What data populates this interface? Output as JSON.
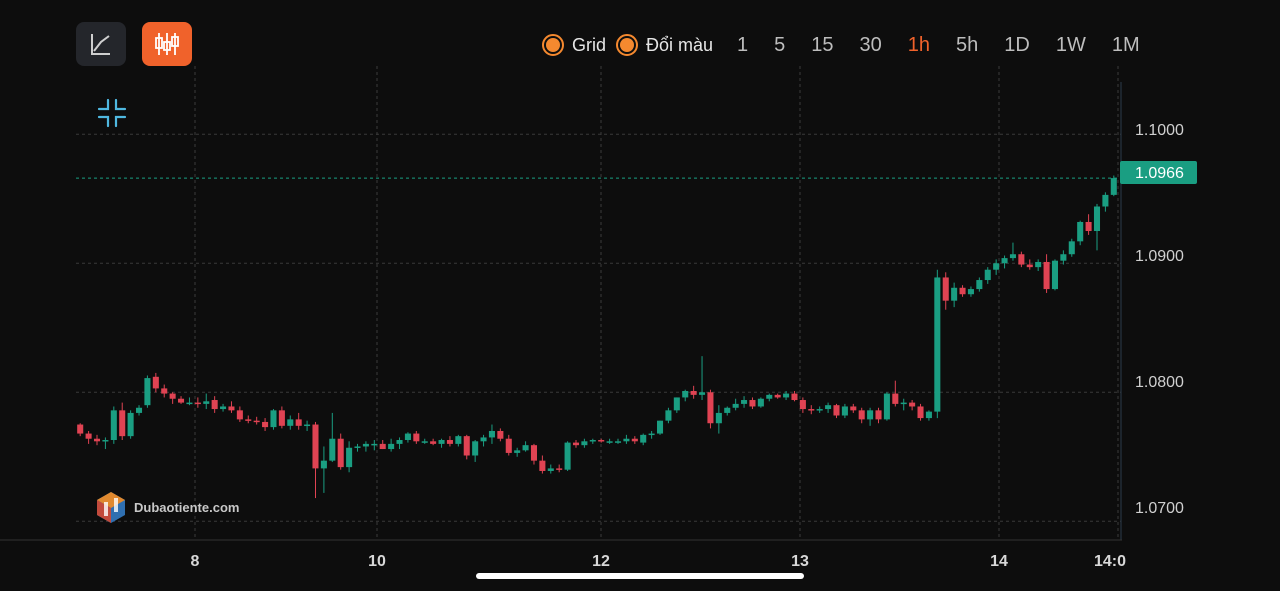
{
  "toolbar": {
    "grid_label": "Grid",
    "color_label": "Đổi màu",
    "timeframes": [
      "1",
      "5",
      "15",
      "30",
      "1h",
      "5h",
      "1D",
      "1W",
      "1M"
    ],
    "active_timeframe": "1h",
    "accent_color": "#f0622b"
  },
  "icons": {
    "line_chart": "line-chart-icon",
    "candlestick": "candlestick-icon",
    "collapse": "collapse-icon"
  },
  "watermark": {
    "text": "Dubaotiente.com"
  },
  "chart_data": {
    "type": "candlestick",
    "y_ticks": [
      "1.1000",
      "1.0900",
      "1.0800",
      "1.0700"
    ],
    "y_tick_values": [
      1.1,
      1.09,
      1.08,
      1.07
    ],
    "ylim": [
      1.06855,
      1.10405
    ],
    "x_ticks": [
      "8",
      "10",
      "12",
      "13",
      "14",
      "14:0"
    ],
    "current_price": "1.0966",
    "current_price_value": 1.0966,
    "grid": true,
    "up_color": "#1a9e82",
    "down_color": "#e04353",
    "candles_ohlc": [
      [
        1.0775,
        1.0776,
        1.0766,
        1.0768
      ],
      [
        1.0768,
        1.077,
        1.076,
        1.0764
      ],
      [
        1.0764,
        1.0767,
        1.0759,
        1.0762
      ],
      [
        1.0762,
        1.0765,
        1.0756,
        1.0763
      ],
      [
        1.0763,
        1.0789,
        1.076,
        1.0786
      ],
      [
        1.0786,
        1.0792,
        1.0763,
        1.0766
      ],
      [
        1.0766,
        1.0786,
        1.0764,
        1.0784
      ],
      [
        1.0784,
        1.079,
        1.0782,
        1.0788
      ],
      [
        1.079,
        1.0813,
        1.0788,
        1.0811
      ],
      [
        1.0812,
        1.0815,
        1.08,
        1.0803
      ],
      [
        1.0803,
        1.0806,
        1.0796,
        1.0799
      ],
      [
        1.0799,
        1.08,
        1.0791,
        1.0795
      ],
      [
        1.0795,
        1.0797,
        1.0791,
        1.0792
      ],
      [
        1.0792,
        1.0796,
        1.079,
        1.0792
      ],
      [
        1.0792,
        1.0796,
        1.0788,
        1.0791
      ],
      [
        1.0791,
        1.0799,
        1.0787,
        1.0793
      ],
      [
        1.0794,
        1.0797,
        1.0784,
        1.0787
      ],
      [
        1.0787,
        1.0791,
        1.0785,
        1.0789
      ],
      [
        1.0789,
        1.0793,
        1.0784,
        1.0786
      ],
      [
        1.0786,
        1.0789,
        1.0777,
        1.0779
      ],
      [
        1.0779,
        1.0782,
        1.0776,
        1.0778
      ],
      [
        1.0778,
        1.0781,
        1.0775,
        1.0777
      ],
      [
        1.0777,
        1.078,
        1.077,
        1.0773
      ],
      [
        1.0773,
        1.0787,
        1.0771,
        1.0786
      ],
      [
        1.0786,
        1.0789,
        1.0772,
        1.0774
      ],
      [
        1.0774,
        1.0782,
        1.0771,
        1.0779
      ],
      [
        1.0779,
        1.0784,
        1.0771,
        1.0774
      ],
      [
        1.0774,
        1.0778,
        1.077,
        1.0775
      ],
      [
        1.0775,
        1.0777,
        1.0718,
        1.0741
      ],
      [
        1.0741,
        1.0758,
        1.0722,
        1.0747
      ],
      [
        1.0747,
        1.0784,
        1.0746,
        1.0764
      ],
      [
        1.0764,
        1.0768,
        1.074,
        1.0742
      ],
      [
        1.0742,
        1.0762,
        1.0738,
        1.0757
      ],
      [
        1.0757,
        1.076,
        1.0754,
        1.0758
      ],
      [
        1.0758,
        1.0762,
        1.0754,
        1.076
      ],
      [
        1.0759,
        1.0763,
        1.0755,
        1.076
      ],
      [
        1.076,
        1.0763,
        1.0756,
        1.0756
      ],
      [
        1.0756,
        1.0764,
        1.0754,
        1.076
      ],
      [
        1.076,
        1.0765,
        1.0756,
        1.0763
      ],
      [
        1.0763,
        1.0769,
        1.0761,
        1.0768
      ],
      [
        1.0768,
        1.077,
        1.076,
        1.0762
      ],
      [
        1.0762,
        1.0764,
        1.076,
        1.0762
      ],
      [
        1.0762,
        1.0764,
        1.0759,
        1.076
      ],
      [
        1.076,
        1.0764,
        1.0757,
        1.0763
      ],
      [
        1.0763,
        1.0766,
        1.0758,
        1.076
      ],
      [
        1.076,
        1.0767,
        1.0758,
        1.0766
      ],
      [
        1.0766,
        1.0767,
        1.0748,
        1.0751
      ],
      [
        1.0751,
        1.0763,
        1.0746,
        1.0762
      ],
      [
        1.0762,
        1.0767,
        1.0758,
        1.0765
      ],
      [
        1.0765,
        1.0775,
        1.076,
        1.077
      ],
      [
        1.077,
        1.0772,
        1.0762,
        1.0764
      ],
      [
        1.0764,
        1.0767,
        1.0751,
        1.0753
      ],
      [
        1.0753,
        1.0757,
        1.075,
        1.0755
      ],
      [
        1.0755,
        1.0762,
        1.0754,
        1.0759
      ],
      [
        1.0759,
        1.076,
        1.0744,
        1.0747
      ],
      [
        1.0747,
        1.0751,
        1.0737,
        1.0739
      ],
      [
        1.0739,
        1.0744,
        1.0737,
        1.0741
      ],
      [
        1.0741,
        1.0744,
        1.0738,
        1.074
      ],
      [
        1.074,
        1.0762,
        1.0739,
        1.0761
      ],
      [
        1.0761,
        1.0763,
        1.0757,
        1.0759
      ],
      [
        1.0759,
        1.0764,
        1.0757,
        1.0762
      ],
      [
        1.0762,
        1.0764,
        1.076,
        1.0763
      ],
      [
        1.0763,
        1.0764,
        1.0761,
        1.0762
      ],
      [
        1.0762,
        1.0764,
        1.076,
        1.0762
      ],
      [
        1.0762,
        1.0764,
        1.076,
        1.0762
      ],
      [
        1.0762,
        1.0767,
        1.076,
        1.0764
      ],
      [
        1.0764,
        1.0766,
        1.076,
        1.0762
      ],
      [
        1.0761,
        1.0768,
        1.0759,
        1.0767
      ],
      [
        1.0767,
        1.077,
        1.0764,
        1.0768
      ],
      [
        1.0768,
        1.0778,
        1.0767,
        1.0778
      ],
      [
        1.0778,
        1.0788,
        1.0776,
        1.0786
      ],
      [
        1.0786,
        1.0796,
        1.0784,
        1.0796
      ],
      [
        1.0796,
        1.0802,
        1.0793,
        1.0801
      ],
      [
        1.0801,
        1.0805,
        1.0795,
        1.0798
      ],
      [
        1.0798,
        1.0828,
        1.0794,
        1.08
      ],
      [
        1.08,
        1.0802,
        1.0772,
        1.0776
      ],
      [
        1.0776,
        1.079,
        1.0768,
        1.0784
      ],
      [
        1.0784,
        1.0789,
        1.0782,
        1.0788
      ],
      [
        1.0788,
        1.0795,
        1.0786,
        1.0791
      ],
      [
        1.0791,
        1.0797,
        1.0788,
        1.0794
      ],
      [
        1.0794,
        1.0796,
        1.0787,
        1.0789
      ],
      [
        1.0789,
        1.0796,
        1.0788,
        1.0795
      ],
      [
        1.0795,
        1.0799,
        1.0793,
        1.0798
      ],
      [
        1.0798,
        1.0799,
        1.0795,
        1.0796
      ],
      [
        1.0796,
        1.0801,
        1.0794,
        1.0799
      ],
      [
        1.0799,
        1.0801,
        1.0793,
        1.0794
      ],
      [
        1.0794,
        1.0796,
        1.0784,
        1.0787
      ],
      [
        1.0787,
        1.079,
        1.0783,
        1.0786
      ],
      [
        1.0786,
        1.0789,
        1.0784,
        1.0787
      ],
      [
        1.0787,
        1.0792,
        1.0784,
        1.079
      ],
      [
        1.079,
        1.0791,
        1.078,
        1.0782
      ],
      [
        1.0782,
        1.0791,
        1.078,
        1.0789
      ],
      [
        1.0789,
        1.0791,
        1.0784,
        1.0786
      ],
      [
        1.0786,
        1.0788,
        1.0776,
        1.0779
      ],
      [
        1.0779,
        1.0788,
        1.0774,
        1.0786
      ],
      [
        1.0786,
        1.0788,
        1.0776,
        1.0779
      ],
      [
        1.0779,
        1.08,
        1.0778,
        1.0799
      ],
      [
        1.0799,
        1.0809,
        1.0789,
        1.0791
      ],
      [
        1.0791,
        1.0795,
        1.0786,
        1.0792
      ],
      [
        1.0792,
        1.0794,
        1.0786,
        1.0789
      ],
      [
        1.0789,
        1.0791,
        1.0778,
        1.078
      ],
      [
        1.078,
        1.0786,
        1.0778,
        1.0785
      ],
      [
        1.0785,
        1.0895,
        1.078,
        1.0889
      ],
      [
        1.0889,
        1.0893,
        1.0864,
        1.0871
      ],
      [
        1.0871,
        1.0885,
        1.0866,
        1.0881
      ],
      [
        1.0881,
        1.0883,
        1.0874,
        1.0876
      ],
      [
        1.0876,
        1.0882,
        1.0874,
        1.088
      ],
      [
        1.088,
        1.0889,
        1.0878,
        1.0887
      ],
      [
        1.0887,
        1.0897,
        1.0884,
        1.0895
      ],
      [
        1.0895,
        1.0903,
        1.0891,
        1.09
      ],
      [
        1.09,
        1.0906,
        1.0896,
        1.0904
      ],
      [
        1.0904,
        1.0916,
        1.0902,
        1.0907
      ],
      [
        1.0907,
        1.0909,
        1.0897,
        1.0899
      ],
      [
        1.0899,
        1.0903,
        1.0895,
        1.0897
      ],
      [
        1.0897,
        1.0903,
        1.0894,
        1.0901
      ],
      [
        1.0901,
        1.0907,
        1.0877,
        1.088
      ],
      [
        1.088,
        1.0903,
        1.0879,
        1.0902
      ],
      [
        1.0902,
        1.091,
        1.0899,
        1.0907
      ],
      [
        1.0907,
        1.0919,
        1.0905,
        1.0917
      ],
      [
        1.0917,
        1.0933,
        1.0914,
        1.0932
      ],
      [
        1.0932,
        1.0938,
        1.0922,
        1.0925
      ],
      [
        1.0925,
        1.0946,
        1.091,
        1.0944
      ],
      [
        1.0944,
        1.0955,
        1.094,
        1.0953
      ],
      [
        1.0953,
        1.0968,
        1.0952,
        1.0966
      ]
    ]
  }
}
